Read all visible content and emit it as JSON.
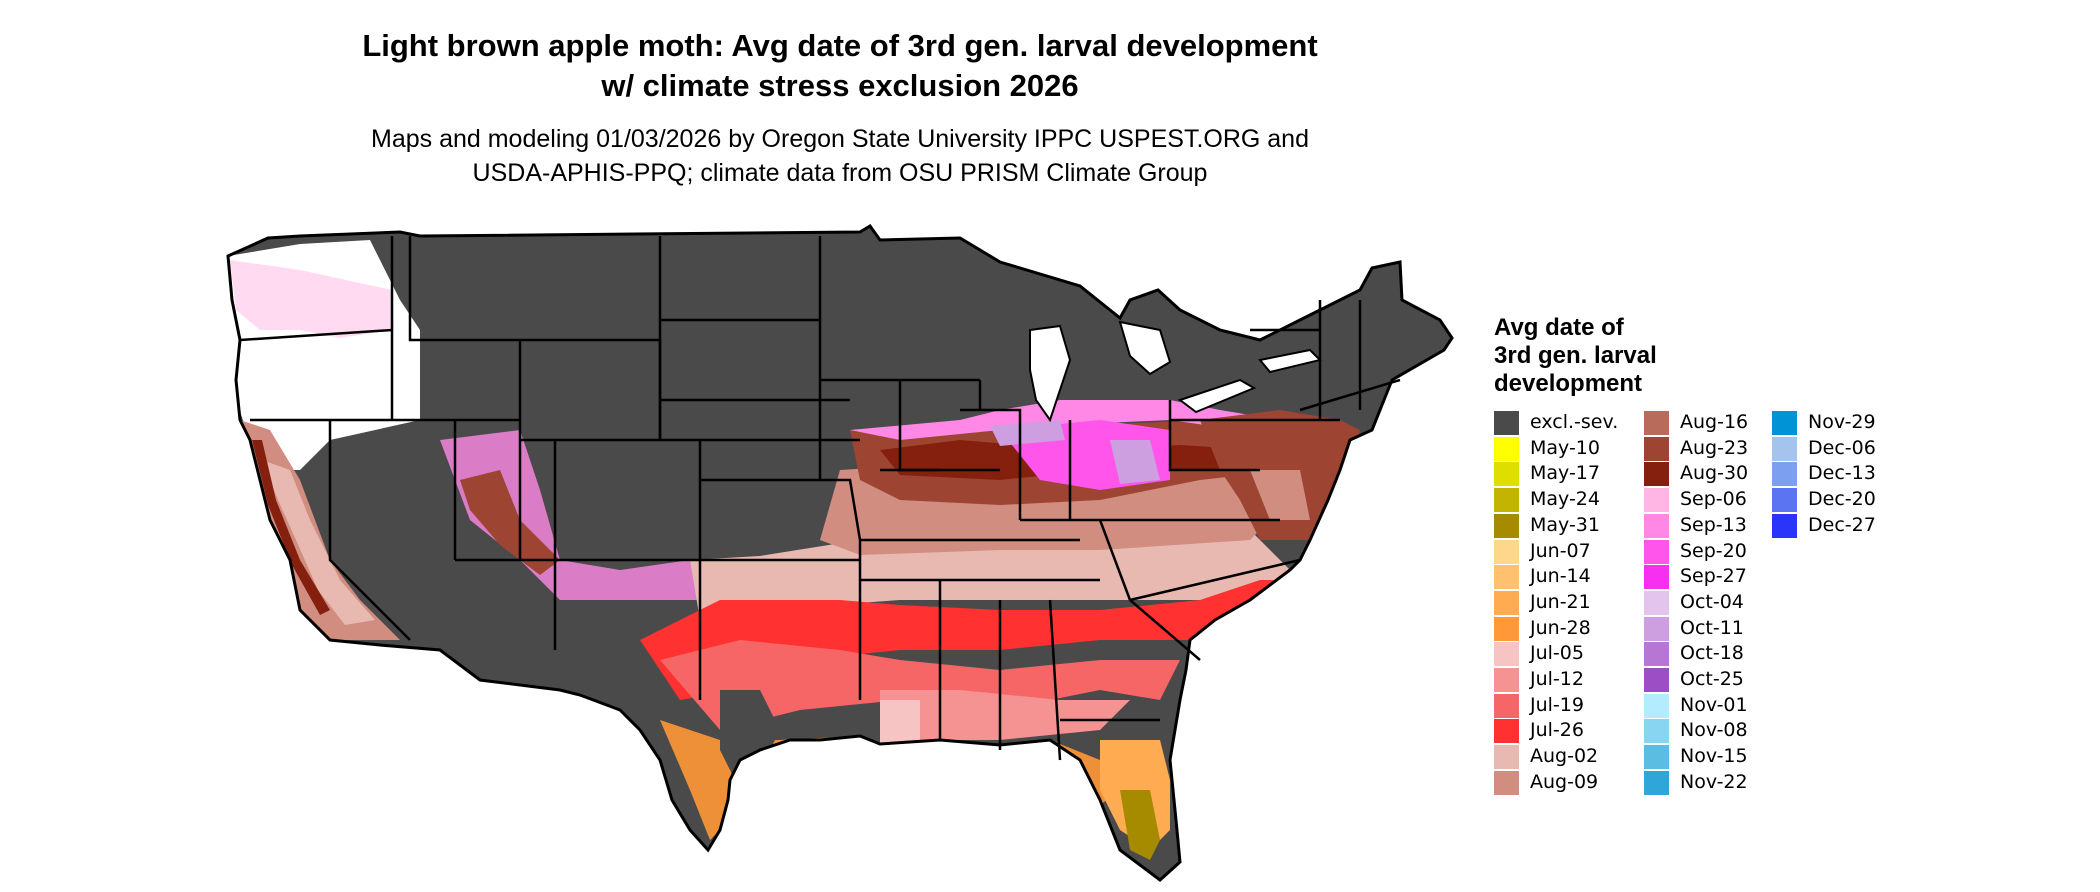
{
  "title": {
    "line1": "Light brown apple moth: Avg date of 3rd gen. larval development",
    "line2": "w/ climate stress exclusion 2026"
  },
  "subtitle": {
    "line1": "Maps and modeling 01/03/2026 by Oregon State University IPPC USPEST.ORG and",
    "line2": "USDA-APHIS-PPQ; climate data from OSU PRISM Climate Group"
  },
  "legend": {
    "title_lines": [
      "Avg date of",
      "3rd gen. larval",
      "development"
    ],
    "items": [
      {
        "label": "excl.-sev.",
        "color": "#4a4a4a"
      },
      {
        "label": "May-10",
        "color": "#ffff00"
      },
      {
        "label": "May-17",
        "color": "#dede00"
      },
      {
        "label": "May-24",
        "color": "#c2b400"
      },
      {
        "label": "May-31",
        "color": "#a68a00"
      },
      {
        "label": "Jun-07",
        "color": "#ffd78a"
      },
      {
        "label": "Jun-14",
        "color": "#ffc16e"
      },
      {
        "label": "Jun-21",
        "color": "#ffab52"
      },
      {
        "label": "Jun-28",
        "color": "#ff9836"
      },
      {
        "label": "Jul-05",
        "color": "#f7c4c4"
      },
      {
        "label": "Jul-12",
        "color": "#f59393"
      },
      {
        "label": "Jul-19",
        "color": "#f66666"
      },
      {
        "label": "Jul-26",
        "color": "#ff3131"
      },
      {
        "label": "Aug-02",
        "color": "#e8b9b0"
      },
      {
        "label": "Aug-09",
        "color": "#d18d80"
      },
      {
        "label": "Aug-16",
        "color": "#b86a5b"
      },
      {
        "label": "Aug-23",
        "color": "#9e4433"
      },
      {
        "label": "Aug-30",
        "color": "#85200f"
      },
      {
        "label": "Sep-06",
        "color": "#ffb6e4"
      },
      {
        "label": "Sep-13",
        "color": "#ff88e6"
      },
      {
        "label": "Sep-20",
        "color": "#ff55ea"
      },
      {
        "label": "Sep-27",
        "color": "#f72ff0"
      },
      {
        "label": "Oct-04",
        "color": "#e2c4ec"
      },
      {
        "label": "Oct-11",
        "color": "#cd9ee0"
      },
      {
        "label": "Oct-18",
        "color": "#b776d3"
      },
      {
        "label": "Oct-25",
        "color": "#9c4ec4"
      },
      {
        "label": "Nov-01",
        "color": "#b4ecff"
      },
      {
        "label": "Nov-08",
        "color": "#87d5f0"
      },
      {
        "label": "Nov-15",
        "color": "#5cbde3"
      },
      {
        "label": "Nov-22",
        "color": "#2ea6d8"
      },
      {
        "label": "Nov-29",
        "color": "#0093d6"
      },
      {
        "label": "Dec-06",
        "color": "#a4c4ee"
      },
      {
        "label": "Dec-13",
        "color": "#7d9ff0"
      },
      {
        "label": "Dec-20",
        "color": "#5a74f2"
      },
      {
        "label": "Dec-27",
        "color": "#2b35fa"
      }
    ]
  }
}
